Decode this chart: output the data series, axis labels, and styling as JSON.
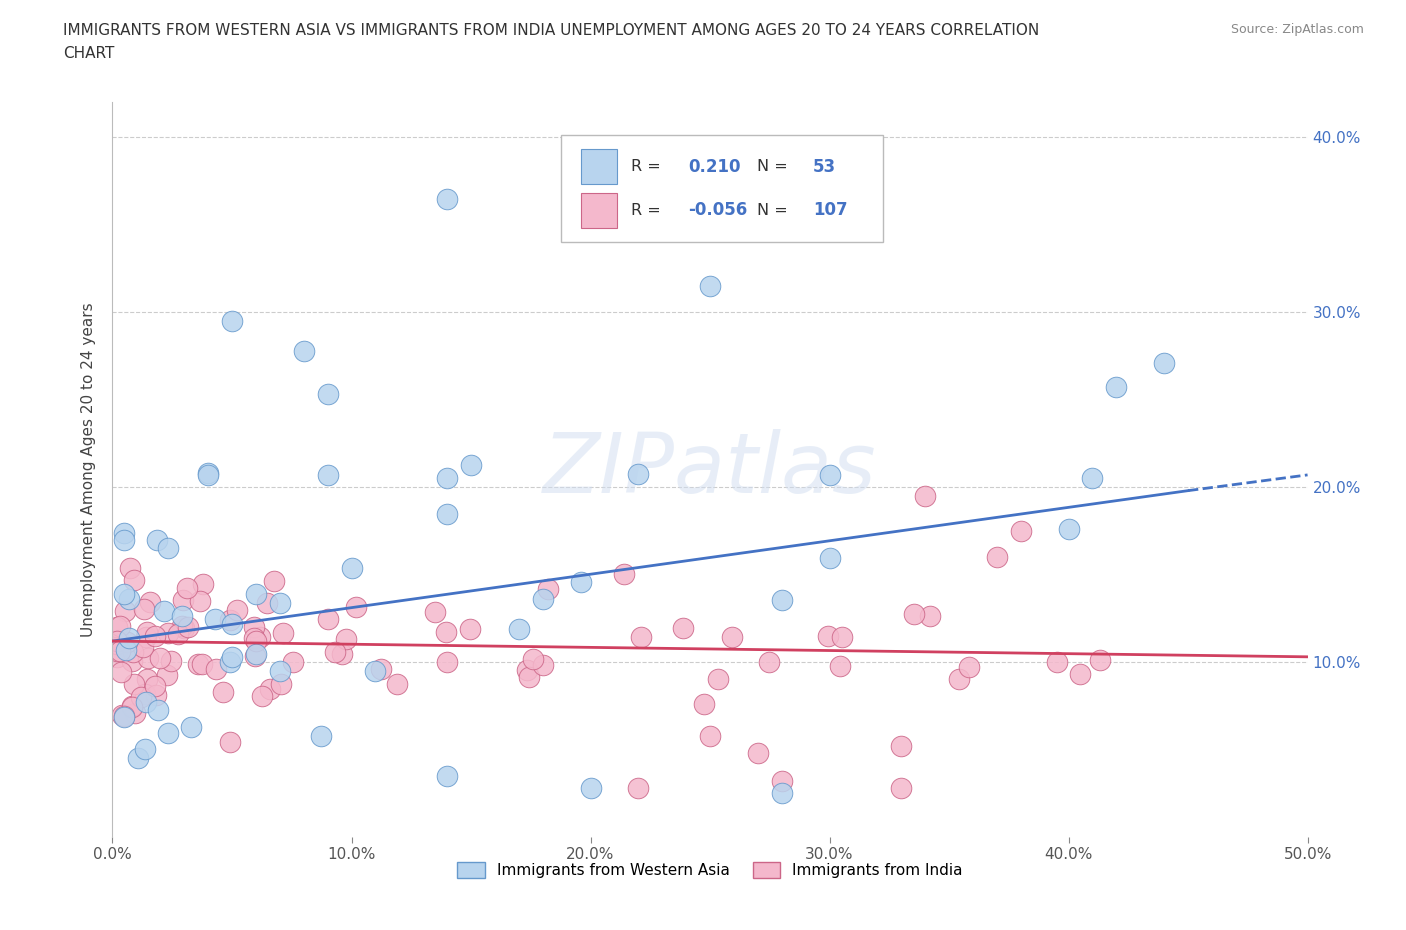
{
  "title_line1": "IMMIGRANTS FROM WESTERN ASIA VS IMMIGRANTS FROM INDIA UNEMPLOYMENT AMONG AGES 20 TO 24 YEARS CORRELATION",
  "title_line2": "CHART",
  "source": "Source: ZipAtlas.com",
  "ylabel": "Unemployment Among Ages 20 to 24 years",
  "xlim": [
    0.0,
    0.5
  ],
  "ylim": [
    0.0,
    0.42
  ],
  "xticks": [
    0.0,
    0.1,
    0.2,
    0.3,
    0.4,
    0.5
  ],
  "xticklabels": [
    "0.0%",
    "10.0%",
    "20.0%",
    "30.0%",
    "40.0%",
    "50.0%"
  ],
  "yticks": [
    0.1,
    0.2,
    0.3,
    0.4
  ],
  "yticklabels": [
    "10.0%",
    "20.0%",
    "30.0%",
    "40.0%"
  ],
  "r_western": 0.21,
  "n_western": 53,
  "r_india": -0.056,
  "n_india": 107,
  "color_western_fill": "#b8d4ee",
  "color_western_edge": "#6699cc",
  "color_india_fill": "#f4b8cc",
  "color_india_edge": "#cc6688",
  "line_western_color": "#4472c4",
  "line_india_color": "#d04060",
  "background_color": "#ffffff",
  "grid_color": "#cccccc",
  "watermark": "ZIPatlas",
  "legend_label_western": "Immigrants from Western Asia",
  "legend_label_india": "Immigrants from India",
  "trend_w_x0": 0.0,
  "trend_w_y0": 0.112,
  "trend_w_x1": 0.45,
  "trend_w_y1": 0.198,
  "trend_w_dash_x0": 0.45,
  "trend_w_dash_y0": 0.198,
  "trend_w_dash_x1": 0.5,
  "trend_w_dash_y1": 0.207,
  "trend_i_x0": 0.0,
  "trend_i_y0": 0.112,
  "trend_i_x1": 0.5,
  "trend_i_y1": 0.103
}
